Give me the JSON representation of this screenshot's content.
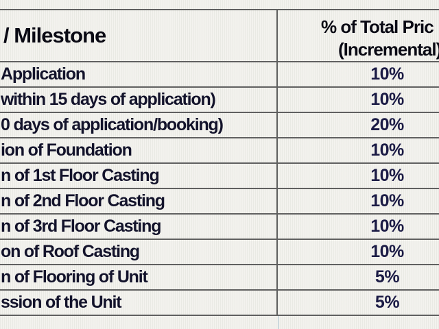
{
  "table": {
    "header": {
      "milestone_label": "/ Milestone",
      "price_label_line1": "% of Total Pric",
      "price_label_line2": "(Incremental)"
    },
    "rows": [
      {
        "milestone": "Application",
        "percent": "10%"
      },
      {
        "milestone": "within 15 days of application)",
        "percent": "10%"
      },
      {
        "milestone": "0 days of application/booking)",
        "percent": "20%"
      },
      {
        "milestone": "ion of Foundation",
        "percent": "10%"
      },
      {
        "milestone": "n of 1st Floor Casting",
        "percent": "10%"
      },
      {
        "milestone": "n of 2nd Floor Casting",
        "percent": "10%"
      },
      {
        "milestone": "n of 3rd Floor Casting",
        "percent": "10%"
      },
      {
        "milestone": "on of Roof Casting",
        "percent": "10%"
      },
      {
        "milestone": "n of Flooring of Unit",
        "percent": "5%"
      },
      {
        "milestone": "ssion of the Unit",
        "percent": "5%"
      }
    ]
  },
  "colors": {
    "bg": "#f3f2ee",
    "grid": "#606060",
    "header_text": "#0a0a14",
    "label_text": "#13132b",
    "value_text": "#1b1b45"
  }
}
